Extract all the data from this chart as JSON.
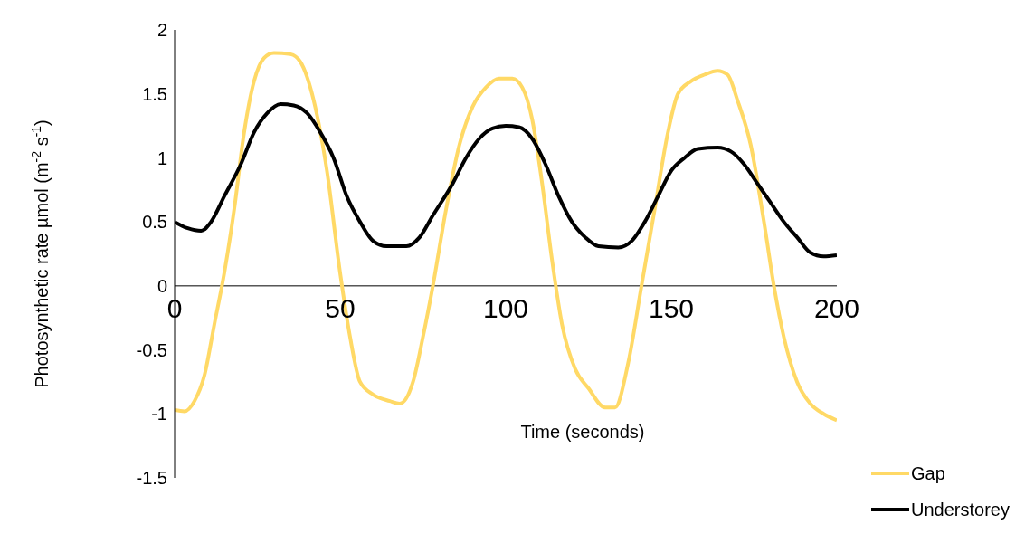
{
  "chart_data": {
    "type": "line",
    "xlabel": "Time (seconds)",
    "ylabel": "Photosynthetic rate µmol (m$^{-2}$ s$^{-1}$)",
    "xlim": [
      0,
      200
    ],
    "xticks": [
      0,
      50,
      100,
      150,
      200
    ],
    "ylim": [
      -1.5,
      2
    ],
    "yticks": [
      -1.5,
      -1,
      -0.5,
      0,
      0.5,
      1,
      1.5,
      2
    ],
    "grid": false,
    "legend": "bottom right",
    "marker": "none",
    "line_style": "solid",
    "series": [
      {
        "name": "Gap",
        "color": "#ffd966",
        "x": [
          0,
          3,
          6,
          9,
          12,
          15,
          18,
          21,
          24,
          27,
          30,
          35,
          38,
          42,
          46,
          50,
          53,
          56,
          60,
          65,
          68,
          72,
          75,
          78,
          82,
          86,
          90,
          94,
          98,
          102,
          105,
          108,
          111,
          114,
          117,
          121,
          125,
          130,
          133,
          137,
          141,
          145,
          149,
          152,
          156,
          160,
          164,
          167,
          170,
          174,
          178,
          181,
          184,
          188,
          192,
          196,
          200
        ],
        "values": [
          -0.97,
          -0.98,
          -0.9,
          -0.7,
          -0.3,
          0.1,
          0.6,
          1.2,
          1.6,
          1.78,
          1.82,
          1.81,
          1.75,
          1.45,
          0.9,
          0.1,
          -0.4,
          -0.75,
          -0.85,
          -0.9,
          -0.92,
          -0.75,
          -0.4,
          0.0,
          0.6,
          1.1,
          1.4,
          1.55,
          1.62,
          1.62,
          1.55,
          1.3,
          0.8,
          0.2,
          -0.3,
          -0.65,
          -0.8,
          -0.95,
          -0.95,
          -0.6,
          0.0,
          0.6,
          1.2,
          1.5,
          1.6,
          1.65,
          1.68,
          1.65,
          1.45,
          1.1,
          0.5,
          0.0,
          -0.4,
          -0.75,
          -0.92,
          -1.0,
          -1.05
        ]
      },
      {
        "name": "Understorey",
        "color": "#000000",
        "x": [
          0,
          4,
          8,
          11,
          15,
          20,
          24,
          28,
          32,
          36,
          40,
          44,
          48,
          52,
          56,
          60,
          64,
          70,
          74,
          78,
          84,
          88,
          92,
          96,
          100,
          104,
          108,
          112,
          116,
          120,
          124,
          128,
          134,
          138,
          142,
          146,
          150,
          154,
          158,
          164,
          168,
          172,
          176,
          180,
          184,
          188,
          192,
          196,
          200
        ],
        "values": [
          0.5,
          0.45,
          0.43,
          0.5,
          0.7,
          0.95,
          1.2,
          1.35,
          1.42,
          1.41,
          1.35,
          1.2,
          1.0,
          0.7,
          0.5,
          0.35,
          0.31,
          0.31,
          0.38,
          0.55,
          0.8,
          1.0,
          1.15,
          1.23,
          1.25,
          1.24,
          1.15,
          0.95,
          0.7,
          0.5,
          0.38,
          0.31,
          0.3,
          0.35,
          0.5,
          0.7,
          0.9,
          1.0,
          1.07,
          1.08,
          1.05,
          0.95,
          0.8,
          0.65,
          0.5,
          0.38,
          0.26,
          0.23,
          0.24
        ]
      }
    ]
  }
}
